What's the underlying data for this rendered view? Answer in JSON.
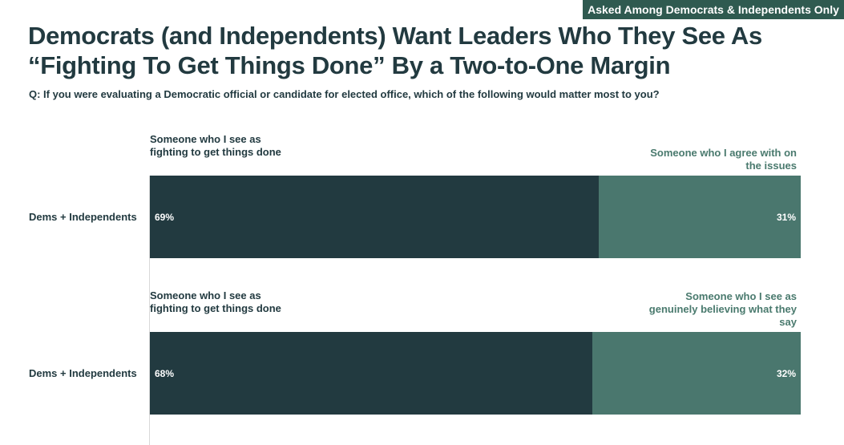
{
  "badge": "Asked Among Democrats & Independents Only",
  "title_line1": "Democrats (and Independents) Want Leaders Who They See As",
  "title_line2": "“Fighting To Get Things Done” By a Two-to-One Margin",
  "question": "Q: If you were evaluating a Democratic official or candidate for elected office, which of the following would matter most to you?",
  "colors": {
    "primary": "#223a40",
    "secondary": "#4a776e",
    "badge": "#2f5a50",
    "right_label": "#4a7a6e"
  },
  "chart_data": {
    "type": "bar",
    "orientation": "horizontal",
    "stacked": true,
    "xlim": [
      0,
      100
    ],
    "categories": [
      "Dems + Independents",
      "Dems + Independents"
    ],
    "rows": [
      {
        "category": "Dems + Independents",
        "left_option": "Someone who I see as fighting to get things done",
        "right_option": "Someone who I agree with on the issues",
        "left_value": 69,
        "right_value": 31,
        "left_label": "69%",
        "right_label": "31%"
      },
      {
        "category": "Dems + Independents",
        "left_option": "Someone who I see as fighting to get things done",
        "right_option": "Someone who I see as genuinely believing what they say",
        "left_value": 68,
        "right_value": 32,
        "left_label": "68%",
        "right_label": "32%"
      }
    ]
  }
}
